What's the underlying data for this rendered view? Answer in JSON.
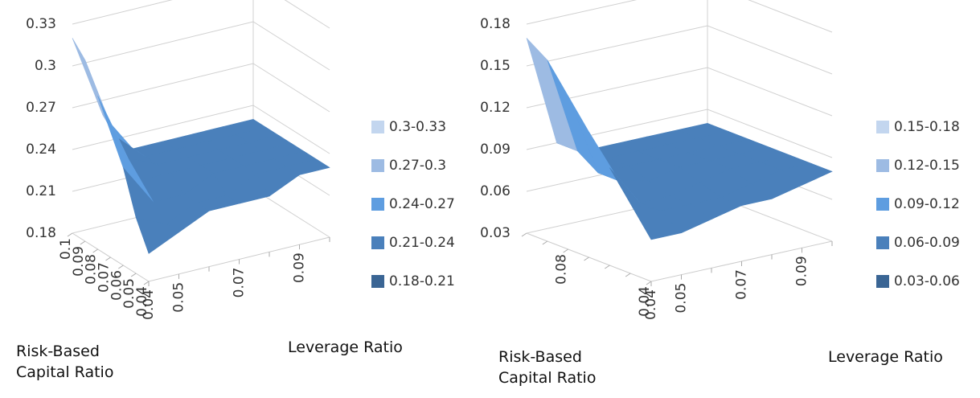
{
  "chart_data": [
    {
      "type": "surface",
      "zlim": [
        0.18,
        0.33
      ],
      "zticks": [
        0.18,
        0.21,
        0.24,
        0.27,
        0.3,
        0.33
      ],
      "x": [
        "0.04",
        "0.05",
        null,
        "0.07",
        null,
        "0.09",
        null
      ],
      "depth": [
        "0.04",
        "0.05",
        "0.06",
        "0.07",
        "0.08",
        "0.09",
        "0.1"
      ],
      "x_label": "Leverage Ratio",
      "depth_label": "Risk-Based Capital Ratio",
      "z": [
        [
          0.2,
          0.21,
          0.22,
          0.22,
          0.22,
          0.23,
          0.23
        ],
        [
          0.22,
          0.21,
          0.22,
          0.22,
          0.23,
          0.23,
          0.23
        ],
        [
          0.25,
          0.22,
          0.22,
          0.23,
          0.23,
          0.23,
          0.23
        ],
        [
          0.27,
          0.23,
          0.23,
          0.23,
          0.23,
          0.23,
          0.23
        ],
        [
          0.29,
          0.24,
          0.23,
          0.23,
          0.23,
          0.23,
          0.23
        ],
        [
          0.31,
          0.25,
          0.23,
          0.23,
          0.23,
          0.23,
          0.23
        ],
        [
          0.32,
          0.26,
          0.23,
          0.23,
          0.23,
          0.23,
          0.23
        ]
      ],
      "series": [
        {
          "name": "0.3-0.33",
          "color": "#c3d6ef"
        },
        {
          "name": "0.27-0.3",
          "color": "#9dbbe3"
        },
        {
          "name": "0.24-0.27",
          "color": "#5e9de0"
        },
        {
          "name": "0.21-0.24",
          "color": "#4a80bb"
        },
        {
          "name": "0.18-0.21",
          "color": "#3a6594"
        }
      ]
    },
    {
      "type": "surface",
      "zlim": [
        0.03,
        0.18
      ],
      "zticks": [
        0.03,
        0.06,
        0.09,
        0.12,
        0.15,
        0.18
      ],
      "x": [
        "0.04",
        "0.05",
        null,
        "0.07",
        null,
        "0.09",
        null
      ],
      "depth": [
        "0.04",
        null,
        null,
        null,
        "0.08",
        null,
        null
      ],
      "x_label": "Leverage Ratio",
      "depth_label": "Risk-Based Capital Ratio",
      "z": [
        [
          0.06,
          0.06,
          0.065,
          0.07,
          0.07,
          0.075,
          0.08
        ],
        [
          0.08,
          0.07,
          0.07,
          0.07,
          0.075,
          0.08,
          0.08
        ],
        [
          0.1,
          0.07,
          0.07,
          0.075,
          0.08,
          0.08,
          0.08
        ],
        [
          0.12,
          0.08,
          0.075,
          0.08,
          0.08,
          0.08,
          0.08
        ],
        [
          0.14,
          0.08,
          0.08,
          0.08,
          0.08,
          0.08,
          0.08
        ],
        [
          0.16,
          0.09,
          0.08,
          0.08,
          0.08,
          0.08,
          0.08
        ],
        [
          0.17,
          0.09,
          0.08,
          0.08,
          0.08,
          0.08,
          0.08
        ]
      ],
      "series": [
        {
          "name": "0.15-0.18",
          "color": "#c3d6ef"
        },
        {
          "name": "0.12-0.15",
          "color": "#9dbbe3"
        },
        {
          "name": "0.09-0.12",
          "color": "#5e9de0"
        },
        {
          "name": "0.06-0.09",
          "color": "#4a80bb"
        },
        {
          "name": "0.03-0.06",
          "color": "#3a6594"
        }
      ]
    }
  ]
}
